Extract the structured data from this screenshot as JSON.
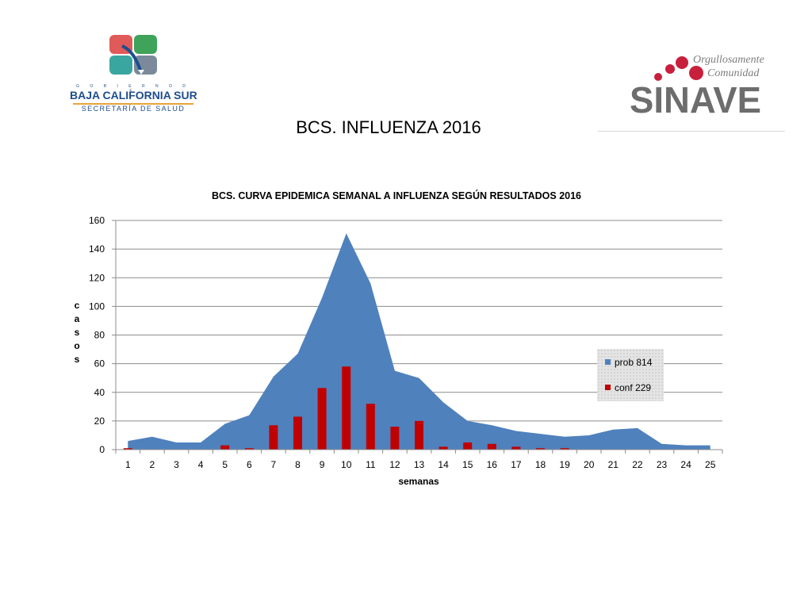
{
  "header": {
    "left_logo": {
      "small_text": "G O B I E R N O   D E",
      "main_text": "BAJA CALIFORNIA SUR",
      "sub_text": "SECRETARÍA DE SALUD"
    },
    "right_logo": {
      "tagline_1": "Orgullosamente",
      "tagline_2": "Comunidad",
      "wordmark": "SINAVE"
    }
  },
  "page_title": "BCS. INFLUENZA 2016",
  "chart_data": {
    "type": "area",
    "title": "BCS. CURVA EPIDEMICA SEMANAL A INFLUENZA SEGÚN RESULTADOS 2016",
    "xlabel": "semanas",
    "ylabel": "casos",
    "categories": [
      "1",
      "2",
      "3",
      "4",
      "5",
      "6",
      "7",
      "8",
      "9",
      "10",
      "11",
      "12",
      "13",
      "14",
      "15",
      "16",
      "17",
      "18",
      "19",
      "20",
      "21",
      "22",
      "23",
      "24",
      "25"
    ],
    "ylim": [
      0,
      160
    ],
    "yticks": [
      0,
      20,
      40,
      60,
      80,
      100,
      120,
      140,
      160
    ],
    "grid": true,
    "legend_position": "right",
    "series": [
      {
        "name": "prob 814",
        "type": "area",
        "color": "#4f81bd",
        "values": [
          6,
          9,
          5,
          5,
          18,
          24,
          51,
          67,
          106,
          151,
          116,
          55,
          50,
          33,
          20,
          17,
          13,
          11,
          9,
          10,
          14,
          15,
          4,
          3,
          3
        ]
      },
      {
        "name": "conf  229",
        "type": "bar",
        "color": "#c00000",
        "values": [
          1,
          0,
          0,
          0,
          3,
          1,
          17,
          23,
          43,
          58,
          32,
          16,
          20,
          2,
          5,
          4,
          2,
          1,
          1,
          0,
          0,
          0,
          0,
          0,
          0
        ]
      }
    ]
  }
}
